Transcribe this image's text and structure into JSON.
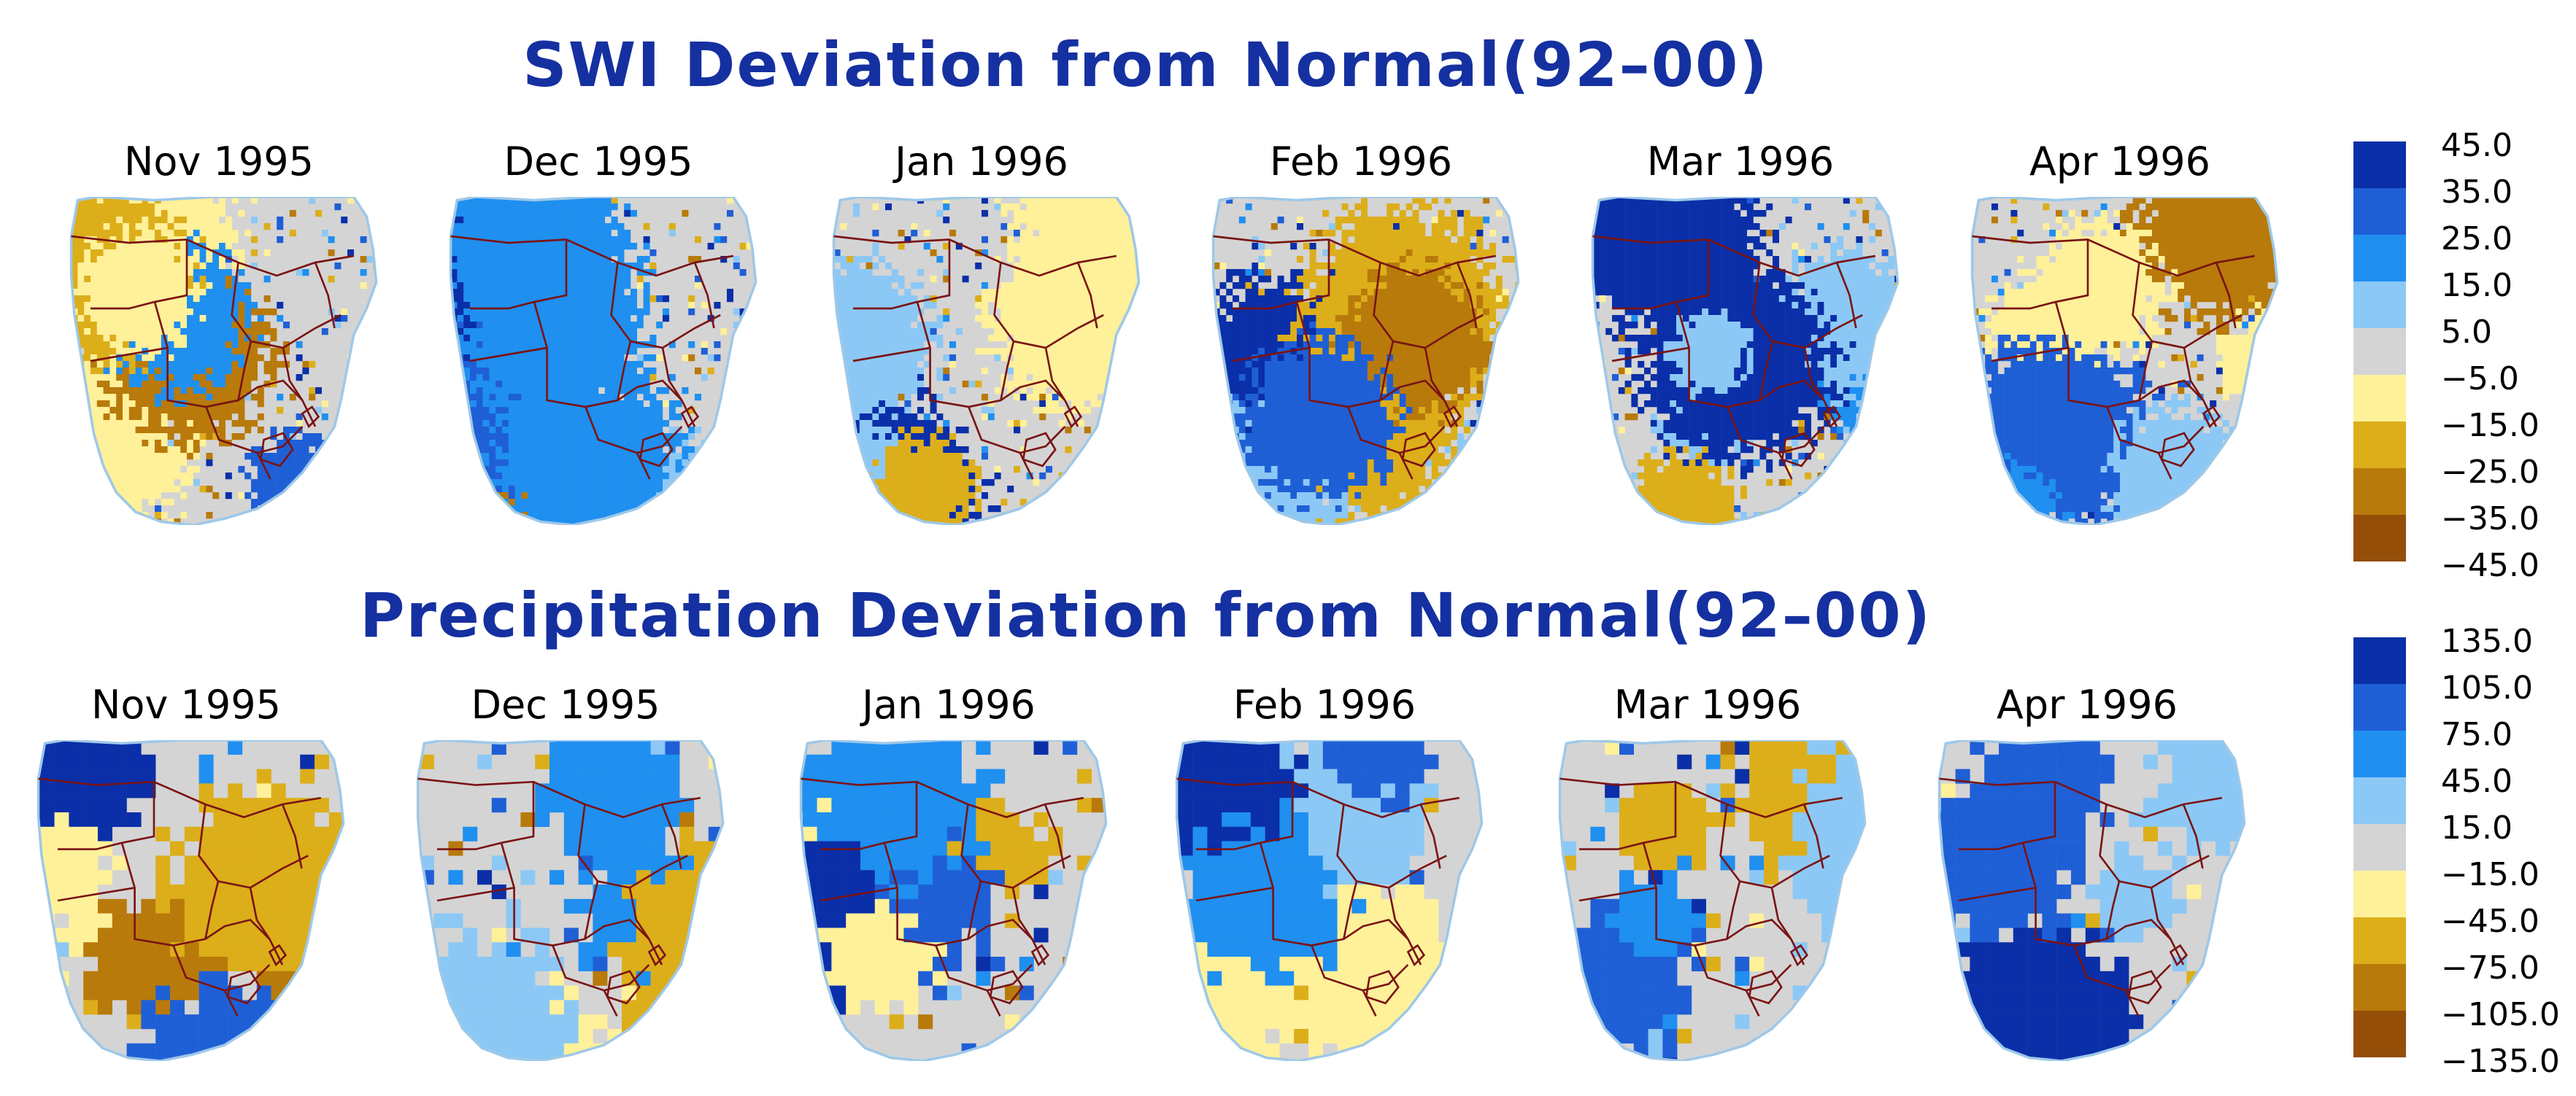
{
  "titles": {
    "swi": "SWI Deviation from Normal(92–00)",
    "precip": "Precipitation Deviation from Normal(92–00)"
  },
  "months": [
    "Nov 1995",
    "Dec 1995",
    "Jan 1996",
    "Feb 1996",
    "Mar 1996",
    "Apr 1996"
  ],
  "legends": {
    "swi": {
      "ticks": [
        "45.0",
        "35.0",
        "25.0",
        "15.0",
        "5.0",
        "−5.0",
        "−15.0",
        "−25.0",
        "−35.0",
        "−45.0"
      ],
      "colors": [
        "#0a2fa8",
        "#1f5fd6",
        "#1f8ff0",
        "#8cc8f5",
        "#d4d4d4",
        "#fff09a",
        "#dcae1a",
        "#b87a0a",
        "#944e08"
      ]
    },
    "precip": {
      "ticks": [
        "135.0",
        "105.0",
        "75.0",
        "45.0",
        "15.0",
        "−15.0",
        "−45.0",
        "−75.0",
        "−105.0",
        "−135.0"
      ],
      "colors": [
        "#0a2fa8",
        "#1f5fd6",
        "#1f8ff0",
        "#8cc8f5",
        "#d4d4d4",
        "#fff09a",
        "#dcae1a",
        "#b87a0a",
        "#944e08"
      ]
    }
  },
  "colors": {
    "title": "#1530a0",
    "land_neutral": "#d4d4d4",
    "border": "#7a1414",
    "coast": "#9ec8e8"
  }
}
